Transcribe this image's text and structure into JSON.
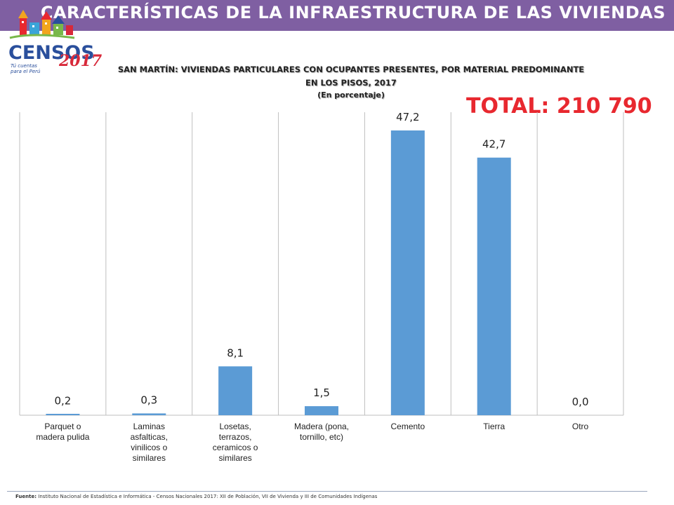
{
  "header": {
    "title": "CARACTERÍSTICAS DE LA INFRAESTRUCTURA DE LAS VIVIENDAS"
  },
  "logo": {
    "word": "CENSOS",
    "year": "2017",
    "tagline": "Tú cuentas para el Perú"
  },
  "chart_title": {
    "line1": "SAN MARTÍN: VIVIENDAS PARTICULARES CON OCUPANTES PRESENTES, POR MATERIAL PREDOMINANTE",
    "line2": "EN LOS PISOS, 2017",
    "line3": "(En porcentaje)"
  },
  "total_label": "TOTAL: 210 790",
  "footer": {
    "label": "Fuente:",
    "text": "Instituto Nacional de Estadística e Informática - Censos Nacionales 2017: XII de Población, VII de Vivienda y III de Comunidades Indígenas"
  },
  "colors": {
    "banner": "#7f5fa2",
    "bar": "#5b9bd5",
    "total": "#e8282f"
  },
  "chart_data": {
    "type": "bar",
    "categories": [
      "Parquet o madera pulida",
      "Laminas asfalticas, vinilicos o similares",
      "Losetas, terrazos, ceramicos o similares",
      "Madera (pona, tornillo, etc)",
      "Cemento",
      "Tierra",
      "Otro"
    ],
    "category_lines": [
      [
        "Parquet o",
        "madera pulida"
      ],
      [
        "Laminas",
        "asfalticas,",
        "vinilicos o",
        "similares"
      ],
      [
        "Losetas,",
        "terrazos,",
        "ceramicos o",
        "similares"
      ],
      [
        "Madera (pona,",
        "tornillo, etc)"
      ],
      [
        "Cemento"
      ],
      [
        "Tierra"
      ],
      [
        "Otro"
      ]
    ],
    "values": [
      0.2,
      0.3,
      8.1,
      1.5,
      47.2,
      42.7,
      0.0
    ],
    "value_labels": [
      "0,2",
      "0,3",
      "8,1",
      "1,5",
      "47,2",
      "42,7",
      "0,0"
    ],
    "ylim": [
      0,
      50
    ],
    "grid": "vertical category separators"
  }
}
